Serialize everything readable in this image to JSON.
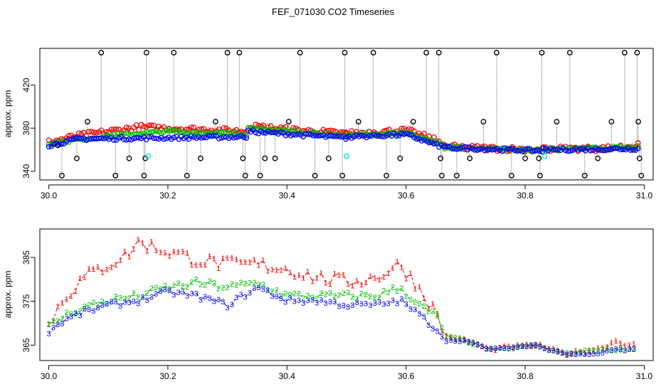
{
  "title": "FEF_071030  CO2 Timeseries",
  "colors": {
    "s1": "#ff0000",
    "s2": "#00c000",
    "s3": "#0000ff",
    "black": "#000000",
    "cyan": "#00e5ee",
    "vline": "#888888"
  },
  "chart_data": [
    {
      "type": "scatter",
      "panel": "top",
      "ylabel": "approx. ppm",
      "xlim": [
        29.985,
        31.015
      ],
      "ylim": [
        332,
        454
      ],
      "xticks": [
        30.0,
        30.2,
        30.4,
        30.6,
        30.8,
        31.0
      ],
      "xtick_labels": [
        "30.0",
        "30.2",
        "30.4",
        "30.6",
        "30.8",
        "31.0"
      ],
      "yticks": [
        340,
        380,
        420
      ],
      "ytick_labels": [
        "340",
        "380",
        "420"
      ],
      "segments": [
        {
          "x0": 30.0,
          "x1": 30.335,
          "s1": [
            [
              30.0,
              367
            ],
            [
              0.05,
              373
            ],
            [
              0.15,
              381
            ],
            [
              0.25,
              379
            ],
            [
              0.335,
              377
            ]
          ],
          "s2": [
            [
              30.0,
              366
            ],
            [
              0.1,
              373
            ],
            [
              0.2,
              377
            ],
            [
              0.335,
              374
            ]
          ],
          "s3": [
            [
              30.0,
              364
            ],
            [
              0.05,
              370
            ],
            [
              0.335,
              372
            ]
          ]
        },
        {
          "x0": 30.335,
          "x1": 30.5,
          "s1": [
            [
              30.335,
              382
            ],
            [
              0.42,
              378
            ],
            [
              0.5,
              375
            ]
          ],
          "s2": [
            [
              30.335,
              380
            ],
            [
              0.5,
              373
            ]
          ],
          "s3": [
            [
              30.335,
              377
            ],
            [
              0.5,
              371
            ]
          ]
        },
        {
          "x0": 30.5,
          "x1": 30.665,
          "s1": [
            [
              30.5,
              375
            ],
            [
              0.6,
              378
            ],
            [
              0.665,
              366
            ]
          ],
          "s2": [
            [
              30.5,
              373
            ],
            [
              0.6,
              376
            ],
            [
              0.665,
              364
            ]
          ],
          "s3": [
            [
              30.5,
              372
            ],
            [
              0.6,
              374
            ],
            [
              0.665,
              362
            ]
          ]
        },
        {
          "x0": 30.665,
          "x1": 30.83,
          "s1": [
            [
              30.665,
              363
            ],
            [
              0.7,
              362
            ],
            [
              0.83,
              360
            ]
          ],
          "s2": [
            [
              30.665,
              362
            ],
            [
              0.83,
              359
            ]
          ],
          "s3": [
            [
              30.665,
              362
            ],
            [
              0.83,
              359
            ]
          ]
        },
        {
          "x0": 30.83,
          "x1": 30.99,
          "s1": [
            [
              30.83,
              361
            ],
            [
              0.93,
              361
            ],
            [
              0.99,
              364
            ]
          ],
          "s2": [
            [
              30.83,
              360
            ],
            [
              0.99,
              362
            ]
          ],
          "s3": [
            [
              30.83,
              360
            ],
            [
              0.99,
              361
            ]
          ]
        }
      ],
      "black_spikes": [
        {
          "x": 30.015,
          "y": 364,
          "y2": 368
        },
        {
          "x": 30.022,
          "y": 336,
          "y2": 365
        },
        {
          "x": 30.047,
          "y": 352,
          "y2": 371
        },
        {
          "x": 30.065,
          "y": 386,
          "y2": 374
        },
        {
          "x": 30.088,
          "y": 450,
          "y2": 376
        },
        {
          "x": 30.112,
          "y": 336,
          "y2": 377
        },
        {
          "x": 30.135,
          "y": 352,
          "y2": 377
        },
        {
          "x": 30.16,
          "y": 336,
          "y2": 378
        },
        {
          "x": 30.162,
          "y": 352,
          "y2": 378
        },
        {
          "x": 30.164,
          "y": 450,
          "y2": 378
        },
        {
          "x": 30.21,
          "y": 450,
          "y2": 378
        },
        {
          "x": 30.232,
          "y": 336,
          "y2": 377
        },
        {
          "x": 30.255,
          "y": 352,
          "y2": 377
        },
        {
          "x": 30.28,
          "y": 386,
          "y2": 377
        },
        {
          "x": 30.3,
          "y": 450,
          "y2": 376
        },
        {
          "x": 30.32,
          "y": 450,
          "y2": 376
        },
        {
          "x": 30.326,
          "y": 352,
          "y2": 376
        },
        {
          "x": 30.33,
          "y": 336,
          "y2": 376
        },
        {
          "x": 30.355,
          "y": 336,
          "y2": 377
        },
        {
          "x": 30.363,
          "y": 352,
          "y2": 377
        },
        {
          "x": 30.38,
          "y": 352,
          "y2": 377
        },
        {
          "x": 30.403,
          "y": 386,
          "y2": 376
        },
        {
          "x": 30.422,
          "y": 450,
          "y2": 376
        },
        {
          "x": 30.447,
          "y": 336,
          "y2": 375
        },
        {
          "x": 30.47,
          "y": 352,
          "y2": 374
        },
        {
          "x": 30.493,
          "y": 336,
          "y2": 373
        },
        {
          "x": 30.497,
          "y": 450,
          "y2": 373
        },
        {
          "x": 30.52,
          "y": 386,
          "y2": 375
        },
        {
          "x": 30.545,
          "y": 450,
          "y2": 375
        },
        {
          "x": 30.567,
          "y": 336,
          "y2": 376
        },
        {
          "x": 30.59,
          "y": 352,
          "y2": 376
        },
        {
          "x": 30.612,
          "y": 386,
          "y2": 374
        },
        {
          "x": 30.634,
          "y": 450,
          "y2": 370
        },
        {
          "x": 30.655,
          "y": 450,
          "y2": 366
        },
        {
          "x": 30.658,
          "y": 352,
          "y2": 365
        },
        {
          "x": 30.66,
          "y": 336,
          "y2": 364
        },
        {
          "x": 30.685,
          "y": 336,
          "y2": 362
        },
        {
          "x": 30.707,
          "y": 352,
          "y2": 362
        },
        {
          "x": 30.73,
          "y": 386,
          "y2": 361
        },
        {
          "x": 30.752,
          "y": 450,
          "y2": 360
        },
        {
          "x": 30.777,
          "y": 336,
          "y2": 360
        },
        {
          "x": 30.8,
          "y": 352,
          "y2": 360
        },
        {
          "x": 30.823,
          "y": 352,
          "y2": 360
        },
        {
          "x": 30.825,
          "y": 336,
          "y2": 360
        },
        {
          "x": 30.828,
          "y": 450,
          "y2": 360
        },
        {
          "x": 30.853,
          "y": 386,
          "y2": 360
        },
        {
          "x": 30.875,
          "y": 450,
          "y2": 360
        },
        {
          "x": 30.9,
          "y": 336,
          "y2": 360
        },
        {
          "x": 30.922,
          "y": 352,
          "y2": 360
        },
        {
          "x": 30.945,
          "y": 386,
          "y2": 360
        },
        {
          "x": 30.967,
          "y": 450,
          "y2": 361
        },
        {
          "x": 30.988,
          "y": 450,
          "y2": 362
        },
        {
          "x": 30.99,
          "y": 386,
          "y2": 362
        },
        {
          "x": 30.992,
          "y": 352,
          "y2": 362
        },
        {
          "x": 30.995,
          "y": 336,
          "y2": 362
        }
      ],
      "cyan_points": [
        [
          30.167,
          354
        ],
        [
          30.5,
          354
        ],
        [
          30.833,
          354
        ]
      ],
      "markers": "circles"
    },
    {
      "type": "line",
      "panel": "bottom",
      "ylabel": "approx. ppm",
      "xlim": [
        29.985,
        31.015
      ],
      "ylim": [
        361.5,
        391.5
      ],
      "xticks": [
        30.0,
        30.2,
        30.4,
        30.6,
        30.8,
        31.0
      ],
      "xtick_labels": [
        "30.0",
        "30.2",
        "30.4",
        "30.6",
        "30.8",
        "31.0"
      ],
      "yticks": [
        365,
        375,
        385
      ],
      "ytick_labels": [
        "365",
        "375",
        "385"
      ],
      "series": [
        {
          "name": "1",
          "color": "#ff0000",
          "points": [
            [
              30.0,
              369
            ],
            [
              30.01,
              372
            ],
            [
              30.03,
              376
            ],
            [
              30.06,
              380
            ],
            [
              30.1,
              383
            ],
            [
              30.13,
              385
            ],
            [
              30.15,
              388
            ],
            [
              30.2,
              386
            ],
            [
              30.25,
              384
            ],
            [
              30.3,
              383
            ],
            [
              30.35,
              383
            ],
            [
              30.4,
              382
            ],
            [
              30.45,
              380
            ],
            [
              30.5,
              379
            ],
            [
              30.55,
              380
            ],
            [
              30.59,
              383
            ],
            [
              30.62,
              378
            ],
            [
              30.65,
              372
            ],
            [
              30.665,
              367
            ],
            [
              30.7,
              366
            ],
            [
              30.74,
              364
            ],
            [
              30.82,
              365
            ],
            [
              30.84,
              364
            ],
            [
              30.87,
              363
            ],
            [
              30.92,
              364
            ],
            [
              30.94,
              365
            ],
            [
              30.95,
              366
            ],
            [
              30.97,
              365
            ],
            [
              30.985,
              365
            ]
          ]
        },
        {
          "name": "2",
          "color": "#00c000",
          "points": [
            [
              30.0,
              369
            ],
            [
              30.02,
              371
            ],
            [
              30.05,
              373
            ],
            [
              30.1,
              375
            ],
            [
              30.15,
              376
            ],
            [
              30.2,
              378
            ],
            [
              30.25,
              379
            ],
            [
              30.3,
              378
            ],
            [
              30.35,
              379
            ],
            [
              30.4,
              376
            ],
            [
              30.45,
              376
            ],
            [
              30.5,
              376
            ],
            [
              30.55,
              376
            ],
            [
              30.59,
              378
            ],
            [
              30.62,
              374
            ],
            [
              30.655,
              371
            ],
            [
              30.665,
              367
            ],
            [
              30.7,
              366
            ],
            [
              30.74,
              364
            ],
            [
              30.82,
              365
            ],
            [
              30.84,
              364
            ],
            [
              30.87,
              363
            ],
            [
              30.92,
              364
            ],
            [
              30.95,
              364
            ],
            [
              30.985,
              364
            ]
          ]
        },
        {
          "name": "3",
          "color": "#0000ff",
          "points": [
            [
              30.0,
              368
            ],
            [
              30.02,
              370
            ],
            [
              30.05,
              372
            ],
            [
              30.1,
              374
            ],
            [
              30.15,
              375
            ],
            [
              30.2,
              377
            ],
            [
              30.25,
              376
            ],
            [
              30.3,
              374
            ],
            [
              30.35,
              378
            ],
            [
              30.4,
              375
            ],
            [
              30.45,
              375
            ],
            [
              30.5,
              374
            ],
            [
              30.55,
              374
            ],
            [
              30.59,
              375
            ],
            [
              30.62,
              372
            ],
            [
              30.655,
              368
            ],
            [
              30.665,
              366
            ],
            [
              30.7,
              366
            ],
            [
              30.74,
              364
            ],
            [
              30.82,
              365
            ],
            [
              30.84,
              364
            ],
            [
              30.87,
              363
            ],
            [
              30.92,
              363
            ],
            [
              30.95,
              364
            ],
            [
              30.985,
              364
            ]
          ]
        }
      ],
      "markers": "digits"
    }
  ]
}
